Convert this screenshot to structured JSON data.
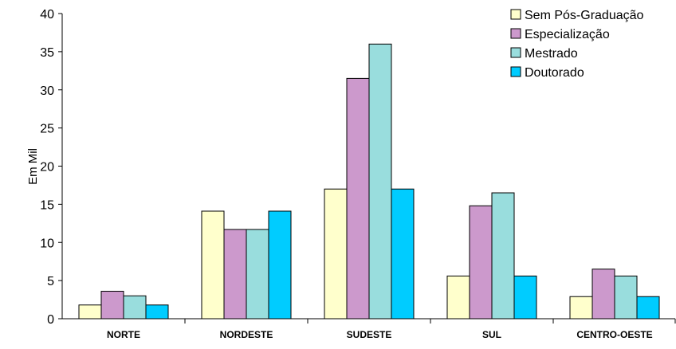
{
  "chart_data": {
    "type": "bar",
    "title": "",
    "xlabel": "",
    "ylabel": "Em Mil",
    "ylim": [
      0,
      40
    ],
    "yticks": [
      0,
      5,
      10,
      15,
      20,
      25,
      30,
      35,
      40
    ],
    "grid": false,
    "legend_position": "top-right",
    "categories": [
      "NORTE",
      "NORDESTE",
      "SUDESTE",
      "SUL",
      "CENTRO-OESTE"
    ],
    "series": [
      {
        "name": "Sem Pós-Graduação",
        "color": "#FFFFCC",
        "values": [
          1.8,
          14.1,
          17.0,
          5.6,
          2.9
        ]
      },
      {
        "name": "Especialização",
        "color": "#CC99CC",
        "values": [
          3.6,
          11.7,
          31.5,
          14.8,
          6.5
        ]
      },
      {
        "name": "Mestrado",
        "color": "#99DDDD",
        "values": [
          3.0,
          11.7,
          36.0,
          16.5,
          5.6
        ]
      },
      {
        "name": "Doutorado",
        "color": "#00CCFF",
        "values": [
          1.8,
          14.1,
          17.0,
          5.6,
          2.9
        ]
      }
    ]
  }
}
